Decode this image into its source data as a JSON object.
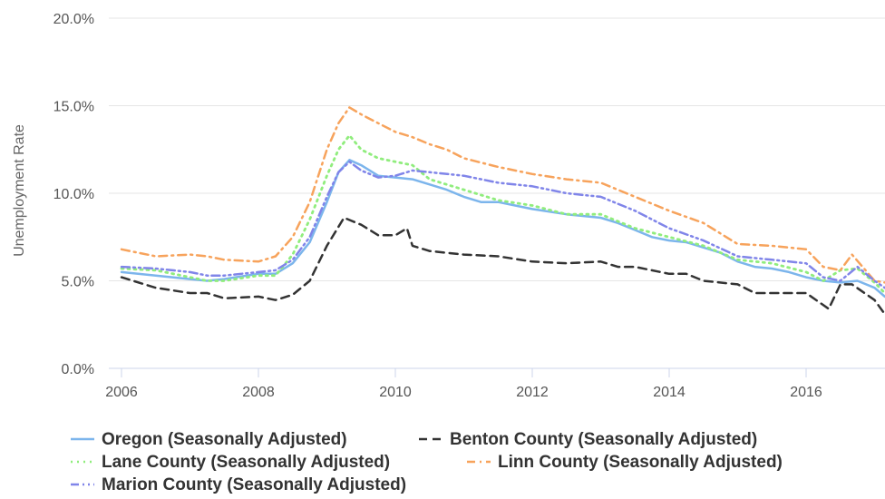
{
  "chart_data": {
    "type": "line",
    "title": "",
    "xlabel": "",
    "ylabel": "Unemployment Rate",
    "ylim": [
      0,
      20
    ],
    "xlim": [
      2006,
      2017.15
    ],
    "y_ticks": [
      {
        "value": 0,
        "label": "0.0%"
      },
      {
        "value": 5,
        "label": "5.0%"
      },
      {
        "value": 10,
        "label": "10.0%"
      },
      {
        "value": 15,
        "label": "15.0%"
      },
      {
        "value": 20,
        "label": "20.0%"
      }
    ],
    "x_ticks": [
      {
        "value": 2006,
        "label": "2006"
      },
      {
        "value": 2008,
        "label": "2008"
      },
      {
        "value": 2010,
        "label": "2010"
      },
      {
        "value": 2012,
        "label": "2012"
      },
      {
        "value": 2014,
        "label": "2014"
      },
      {
        "value": 2016,
        "label": "2016"
      }
    ],
    "grid": "horizontal",
    "legend_position": "bottom-left",
    "series": [
      {
        "name": "Oregon (Seasonally Adjusted)",
        "color": "#7cb5ec",
        "dash": "solid",
        "x": [
          2006,
          2006.5,
          2007,
          2007.25,
          2007.5,
          2008,
          2008.25,
          2008.5,
          2008.75,
          2009,
          2009.17,
          2009.33,
          2009.5,
          2009.75,
          2010,
          2010.25,
          2010.5,
          2010.75,
          2011,
          2011.25,
          2011.5,
          2011.75,
          2012,
          2012.5,
          2013,
          2013.25,
          2013.5,
          2013.75,
          2014,
          2014.25,
          2014.5,
          2014.75,
          2015,
          2015.25,
          2015.5,
          2015.75,
          2016,
          2016.25,
          2016.5,
          2016.75,
          2017,
          2017.15
        ],
        "y": [
          5.5,
          5.3,
          5.1,
          5.0,
          5.1,
          5.4,
          5.4,
          6.0,
          7.2,
          9.5,
          11.2,
          11.9,
          11.6,
          11.0,
          10.9,
          10.8,
          10.5,
          10.2,
          9.8,
          9.5,
          9.5,
          9.3,
          9.1,
          8.8,
          8.6,
          8.3,
          7.9,
          7.5,
          7.3,
          7.2,
          6.9,
          6.6,
          6.1,
          5.8,
          5.7,
          5.5,
          5.2,
          5.0,
          4.9,
          5.0,
          4.6,
          4.1
        ]
      },
      {
        "name": "Benton County (Seasonally Adjusted)",
        "color": "#333333",
        "dash": "dash",
        "x": [
          2006,
          2006.5,
          2007,
          2007.25,
          2007.5,
          2008,
          2008.25,
          2008.5,
          2008.75,
          2009,
          2009.25,
          2009.5,
          2009.75,
          2010,
          2010.17,
          2010.25,
          2010.5,
          2011,
          2011.5,
          2012,
          2012.5,
          2013,
          2013.25,
          2013.5,
          2014,
          2014.25,
          2014.5,
          2015,
          2015.25,
          2015.5,
          2016,
          2016.33,
          2016.5,
          2016.67,
          2017,
          2017.15
        ],
        "y": [
          5.2,
          4.6,
          4.3,
          4.3,
          4.0,
          4.1,
          3.9,
          4.2,
          5.0,
          7.0,
          8.6,
          8.2,
          7.6,
          7.6,
          8.0,
          7.0,
          6.7,
          6.5,
          6.4,
          6.1,
          6.0,
          6.1,
          5.8,
          5.8,
          5.4,
          5.4,
          5.0,
          4.8,
          4.3,
          4.3,
          4.3,
          3.4,
          4.8,
          4.8,
          3.9,
          3.1
        ]
      },
      {
        "name": "Lane County (Seasonally Adjusted)",
        "color": "#90ed7d",
        "dash": "dot",
        "x": [
          2006,
          2006.5,
          2007,
          2007.25,
          2007.5,
          2008,
          2008.25,
          2008.5,
          2008.75,
          2009,
          2009.17,
          2009.33,
          2009.5,
          2009.75,
          2010,
          2010.25,
          2010.5,
          2011,
          2011.5,
          2012,
          2012.5,
          2013,
          2013.5,
          2014,
          2014.5,
          2015,
          2015.5,
          2016,
          2016.25,
          2016.5,
          2016.75,
          2017,
          2017.15
        ],
        "y": [
          5.7,
          5.6,
          5.2,
          5.0,
          5.0,
          5.3,
          5.3,
          6.5,
          8.5,
          11.0,
          12.5,
          13.3,
          12.5,
          12.0,
          11.8,
          11.6,
          10.8,
          10.2,
          9.6,
          9.3,
          8.8,
          8.8,
          8.0,
          7.5,
          7.0,
          6.2,
          6.0,
          5.5,
          5.0,
          5.6,
          5.7,
          4.9,
          4.3
        ]
      },
      {
        "name": "Linn County (Seasonally Adjusted)",
        "color": "#f7a35c",
        "dash": "dashdot",
        "x": [
          2006,
          2006.5,
          2007,
          2007.25,
          2007.5,
          2008,
          2008.25,
          2008.5,
          2008.75,
          2009,
          2009.17,
          2009.33,
          2009.5,
          2009.75,
          2010,
          2010.25,
          2010.5,
          2010.75,
          2011,
          2011.5,
          2012,
          2012.5,
          2013,
          2013.5,
          2014,
          2014.5,
          2015,
          2015.5,
          2016,
          2016.25,
          2016.5,
          2016.67,
          2017,
          2017.15
        ],
        "y": [
          6.8,
          6.4,
          6.5,
          6.4,
          6.2,
          6.1,
          6.4,
          7.5,
          9.5,
          12.5,
          14.0,
          14.9,
          14.5,
          14.0,
          13.5,
          13.2,
          12.8,
          12.5,
          12.0,
          11.5,
          11.1,
          10.8,
          10.6,
          9.8,
          9.0,
          8.3,
          7.1,
          7.0,
          6.8,
          5.8,
          5.6,
          6.5,
          5.0,
          4.9
        ]
      },
      {
        "name": "Marion County (Seasonally Adjusted)",
        "color": "#8085e9",
        "dash": "dashdotdot",
        "x": [
          2006,
          2006.5,
          2007,
          2007.25,
          2007.5,
          2008,
          2008.25,
          2008.5,
          2008.75,
          2009,
          2009.17,
          2009.33,
          2009.5,
          2009.75,
          2010,
          2010.25,
          2010.5,
          2011,
          2011.5,
          2012,
          2012.5,
          2013,
          2013.5,
          2014,
          2014.5,
          2015,
          2015.5,
          2016,
          2016.25,
          2016.5,
          2016.75,
          2017,
          2017.15
        ],
        "y": [
          5.8,
          5.7,
          5.5,
          5.3,
          5.3,
          5.5,
          5.6,
          6.2,
          7.5,
          9.8,
          11.2,
          11.8,
          11.3,
          10.9,
          11.0,
          11.3,
          11.2,
          11.0,
          10.6,
          10.4,
          10.0,
          9.8,
          9.0,
          8.0,
          7.3,
          6.4,
          6.2,
          6.0,
          5.2,
          5.0,
          5.8,
          5.0,
          4.6
        ]
      }
    ]
  }
}
